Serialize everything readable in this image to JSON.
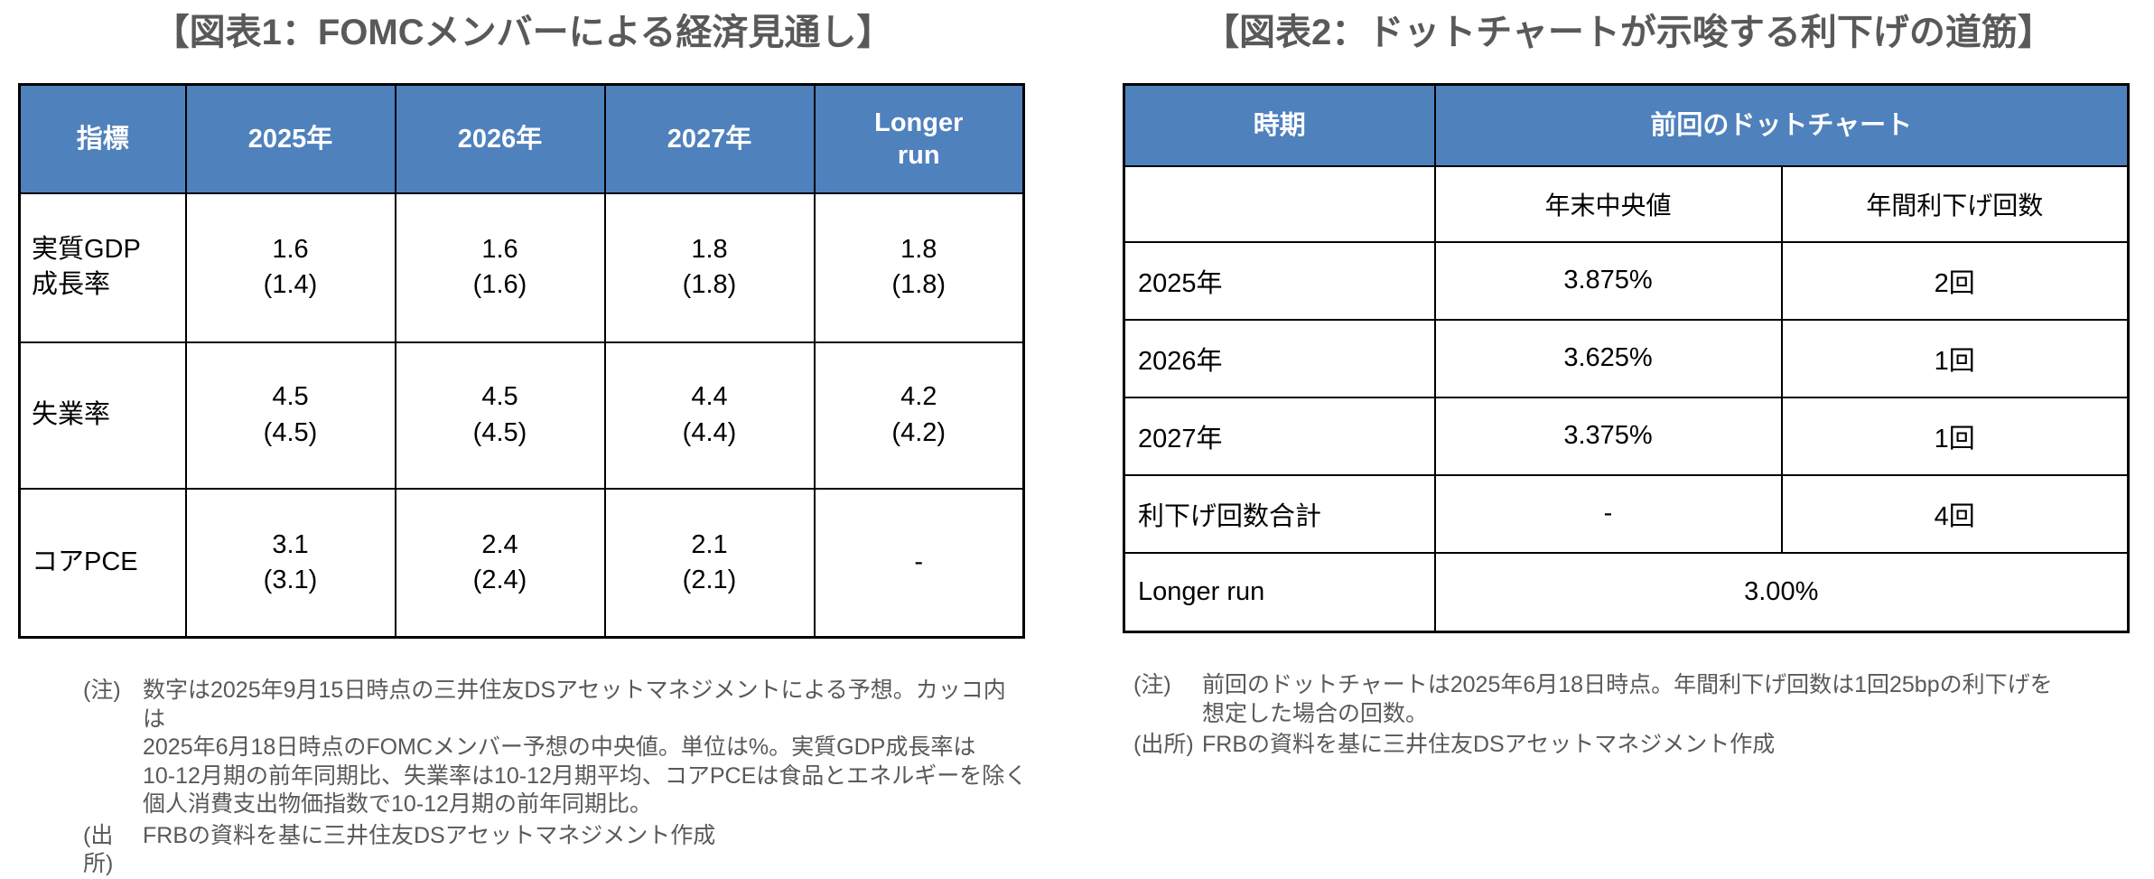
{
  "colors": {
    "header_bg": "#4F81BD",
    "header_text": "#ffffff",
    "title_text": "#595959",
    "body_text": "#000000",
    "note_text": "#595959",
    "border": "#000000"
  },
  "figure1": {
    "title": "【図表1：FOMCメンバーによる経済見通し】",
    "table": {
      "headers": [
        "指標",
        "2025年",
        "2026年",
        "2027年",
        "Longer\nrun"
      ],
      "rows": [
        {
          "label": "実質GDP\n成長率",
          "cells": [
            {
              "v": "1.6",
              "p": "(1.4)"
            },
            {
              "v": "1.6",
              "p": "(1.6)"
            },
            {
              "v": "1.8",
              "p": "(1.8)"
            },
            {
              "v": "1.8",
              "p": "(1.8)"
            }
          ]
        },
        {
          "label": "失業率",
          "cells": [
            {
              "v": "4.5",
              "p": "(4.5)"
            },
            {
              "v": "4.5",
              "p": "(4.5)"
            },
            {
              "v": "4.4",
              "p": "(4.4)"
            },
            {
              "v": "4.2",
              "p": "(4.2)"
            }
          ]
        },
        {
          "label": "コアPCE",
          "cells": [
            {
              "v": "3.1",
              "p": "(3.1)"
            },
            {
              "v": "2.4",
              "p": "(2.4)"
            },
            {
              "v": "2.1",
              "p": "(2.1)"
            },
            {
              "v": "-",
              "p": ""
            }
          ]
        }
      ]
    },
    "note_label": "(注)",
    "note": "数字は2025年9月15日時点の三井住友DSアセットマネジメントによる予想。カッコ内は\n2025年6月18日時点のFOMCメンバー予想の中央値。単位は%。実質GDP成長率は\n10-12月期の前年同期比、失業率は10-12月期平均、コアPCEは食品とエネルギーを除く\n個人消費支出物価指数で10-12月期の前年同期比。",
    "source_label": "(出所)",
    "source": "FRBの資料を基に三井住友DSアセットマネジメント作成"
  },
  "figure2": {
    "title": "【図表2：ドットチャートが示唆する利下げの道筋】",
    "table": {
      "col1_header": "時期",
      "group_header": "前回のドットチャート",
      "sub_headers": [
        "年末中央値",
        "年間利下げ回数"
      ],
      "rows": [
        {
          "label": "2025年",
          "median": "3.875%",
          "cuts": "2回"
        },
        {
          "label": "2026年",
          "median": "3.625%",
          "cuts": "1回"
        },
        {
          "label": "2027年",
          "median": "3.375%",
          "cuts": "1回"
        },
        {
          "label": "利下げ回数合計",
          "median": "-",
          "cuts": "4回"
        }
      ],
      "longer_run_label": "Longer run",
      "longer_run_value": "3.00%"
    },
    "note_label": "(注)",
    "note": "前回のドットチャートは2025年6月18日時点。年間利下げ回数は1回25bpの利下げを\n想定した場合の回数。",
    "source_label": "(出所)",
    "source": "FRBの資料を基に三井住友DSアセットマネジメント作成"
  }
}
